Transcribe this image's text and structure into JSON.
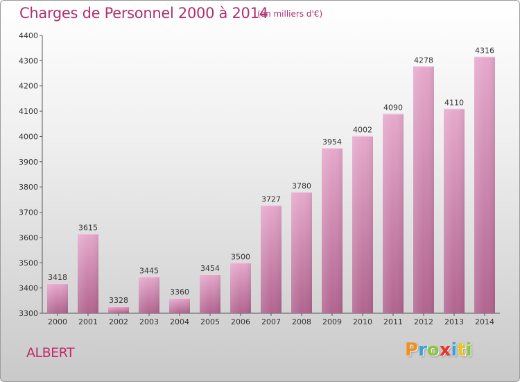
{
  "chart_data": {
    "type": "bar",
    "title": "Charges de Personnel 2000 à 2014",
    "subtitle": "(en milliers d'€)",
    "categories": [
      "2000",
      "2001",
      "2002",
      "2003",
      "2004",
      "2005",
      "2006",
      "2007",
      "2008",
      "2009",
      "2010",
      "2011",
      "2012",
      "2013",
      "2014"
    ],
    "values": [
      3418,
      3615,
      3328,
      3445,
      3360,
      3454,
      3500,
      3727,
      3780,
      3954,
      4002,
      4090,
      4278,
      4110,
      4316
    ],
    "ylim": [
      3300,
      4400
    ],
    "yticks": [
      3300,
      3400,
      3500,
      3600,
      3700,
      3800,
      3900,
      4000,
      4100,
      4200,
      4300,
      4400
    ],
    "xlabel": "",
    "ylabel": "",
    "grid": false,
    "bar_color": "#c85a92"
  },
  "footer": {
    "town": "ALBERT",
    "logo_letters": [
      {
        "char": "P",
        "color": "#f0901e"
      },
      {
        "char": "r",
        "color": "#3aa0d8"
      },
      {
        "char": "o",
        "color": "#8cc63f"
      },
      {
        "char": "x",
        "color": "#e8312f"
      },
      {
        "char": "i",
        "color": "#3aa0d8"
      },
      {
        "char": "t",
        "color": "#f0c21e"
      },
      {
        "char": "i",
        "color": "#8cc63f"
      }
    ]
  }
}
